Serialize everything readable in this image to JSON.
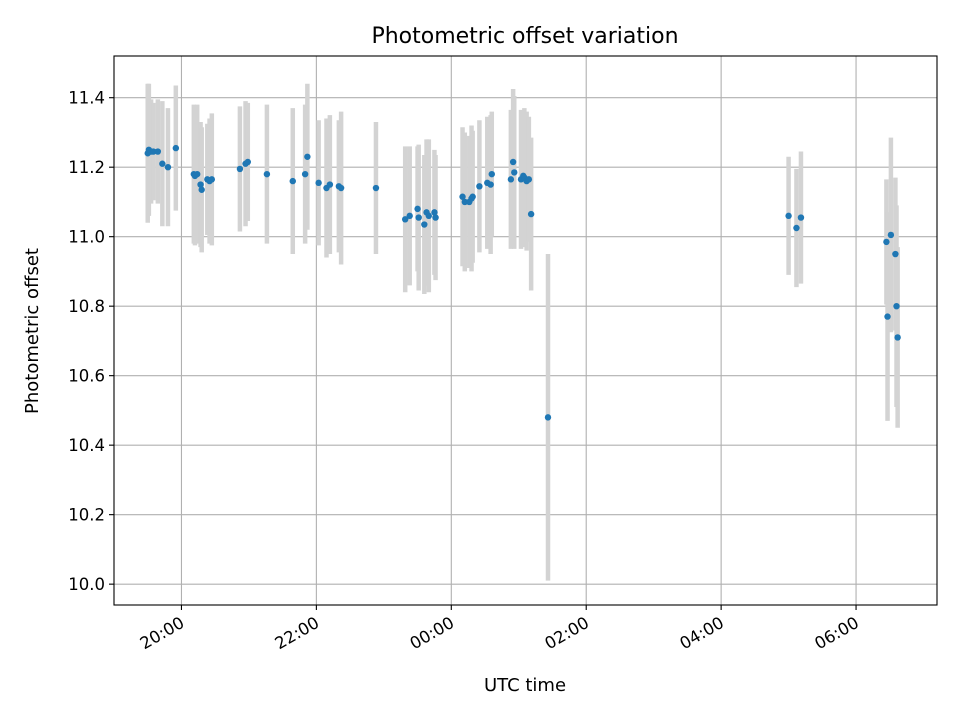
{
  "chart_data": {
    "type": "scatter",
    "title": "Photometric offset variation",
    "xlabel": "UTC time",
    "ylabel": "Photometric offset",
    "x_ticks": [
      "20:00",
      "22:00",
      "00:00",
      "02:00",
      "04:00",
      "06:00"
    ],
    "y_ticks": [
      "10.0",
      "10.2",
      "10.4",
      "10.6",
      "10.8",
      "11.0",
      "11.2",
      "11.4"
    ],
    "xlim": [
      "19:00",
      "07:12"
    ],
    "ylim": [
      9.94,
      11.52
    ],
    "grid": true,
    "colors": {
      "point": "#1f77b4",
      "errorbar": "#d3d3d3"
    },
    "series": [
      {
        "points": [
          {
            "t": "19:30",
            "y": 11.24,
            "err": 0.2
          },
          {
            "t": "19:31",
            "y": 11.25,
            "err": 0.19
          },
          {
            "t": "19:33",
            "y": 11.245,
            "err": 0.15
          },
          {
            "t": "19:35",
            "y": 11.245,
            "err": 0.14
          },
          {
            "t": "19:39",
            "y": 11.245,
            "err": 0.15
          },
          {
            "t": "19:43",
            "y": 11.21,
            "err": 0.18
          },
          {
            "t": "19:48",
            "y": 11.2,
            "err": 0.17
          },
          {
            "t": "19:55",
            "y": 11.255,
            "err": 0.18
          },
          {
            "t": "20:11",
            "y": 11.18,
            "err": 0.2
          },
          {
            "t": "20:12",
            "y": 11.175,
            "err": 0.2
          },
          {
            "t": "20:14",
            "y": 11.18,
            "err": 0.2
          },
          {
            "t": "20:17",
            "y": 11.15,
            "err": 0.18
          },
          {
            "t": "20:18",
            "y": 11.135,
            "err": 0.18
          },
          {
            "t": "20:23",
            "y": 11.165,
            "err": 0.16
          },
          {
            "t": "20:25",
            "y": 11.16,
            "err": 0.18
          },
          {
            "t": "20:27",
            "y": 11.165,
            "err": 0.19
          },
          {
            "t": "20:52",
            "y": 11.195,
            "err": 0.18
          },
          {
            "t": "20:57",
            "y": 11.21,
            "err": 0.18
          },
          {
            "t": "20:59",
            "y": 11.215,
            "err": 0.17
          },
          {
            "t": "21:16",
            "y": 11.18,
            "err": 0.2
          },
          {
            "t": "21:39",
            "y": 11.16,
            "err": 0.21
          },
          {
            "t": "21:50",
            "y": 11.18,
            "err": 0.2
          },
          {
            "t": "21:52",
            "y": 11.23,
            "err": 0.21
          },
          {
            "t": "22:02",
            "y": 11.155,
            "err": 0.18
          },
          {
            "t": "22:09",
            "y": 11.14,
            "err": 0.2
          },
          {
            "t": "22:12",
            "y": 11.15,
            "err": 0.2
          },
          {
            "t": "22:20",
            "y": 11.145,
            "err": 0.19
          },
          {
            "t": "22:22",
            "y": 11.14,
            "err": 0.22
          },
          {
            "t": "22:53",
            "y": 11.14,
            "err": 0.19
          },
          {
            "t": "23:19",
            "y": 11.05,
            "err": 0.21
          },
          {
            "t": "23:23",
            "y": 11.06,
            "err": 0.2
          },
          {
            "t": "23:30",
            "y": 11.08,
            "err": 0.18
          },
          {
            "t": "23:31",
            "y": 11.055,
            "err": 0.21
          },
          {
            "t": "23:36",
            "y": 11.035,
            "err": 0.2
          },
          {
            "t": "23:38",
            "y": 11.07,
            "err": 0.21
          },
          {
            "t": "23:40",
            "y": 11.06,
            "err": 0.22
          },
          {
            "t": "23:45",
            "y": 11.07,
            "err": 0.18
          },
          {
            "t": "23:46",
            "y": 11.055,
            "err": 0.18
          },
          {
            "t": "00:10",
            "y": 11.115,
            "err": 0.2
          },
          {
            "t": "00:12",
            "y": 11.1,
            "err": 0.2
          },
          {
            "t": "00:16",
            "y": 11.1,
            "err": 0.19
          },
          {
            "t": "00:18",
            "y": 11.11,
            "err": 0.21
          },
          {
            "t": "00:19",
            "y": 11.115,
            "err": 0.19
          },
          {
            "t": "00:25",
            "y": 11.145,
            "err": 0.19
          },
          {
            "t": "00:32",
            "y": 11.155,
            "err": 0.19
          },
          {
            "t": "00:35",
            "y": 11.15,
            "err": 0.2
          },
          {
            "t": "00:36",
            "y": 11.18,
            "err": 0.18
          },
          {
            "t": "00:53",
            "y": 11.165,
            "err": 0.2
          },
          {
            "t": "00:55",
            "y": 11.215,
            "err": 0.21
          },
          {
            "t": "00:56",
            "y": 11.185,
            "err": 0.22
          },
          {
            "t": "01:02",
            "y": 11.165,
            "err": 0.2
          },
          {
            "t": "01:04",
            "y": 11.175,
            "err": 0.18
          },
          {
            "t": "01:05",
            "y": 11.17,
            "err": 0.2
          },
          {
            "t": "01:07",
            "y": 11.16,
            "err": 0.2
          },
          {
            "t": "01:09",
            "y": 11.165,
            "err": 0.18
          },
          {
            "t": "01:11",
            "y": 11.065,
            "err": 0.22
          },
          {
            "t": "01:26",
            "y": 10.48,
            "err": 0.47
          },
          {
            "t": "05:00",
            "y": 11.06,
            "err": 0.17
          },
          {
            "t": "05:07",
            "y": 11.025,
            "err": 0.17
          },
          {
            "t": "05:11",
            "y": 11.055,
            "err": 0.19
          },
          {
            "t": "06:27",
            "y": 10.985,
            "err": 0.18
          },
          {
            "t": "06:28",
            "y": 10.77,
            "err": 0.3
          },
          {
            "t": "06:31",
            "y": 11.005,
            "err": 0.28
          },
          {
            "t": "06:35",
            "y": 10.95,
            "err": 0.22
          },
          {
            "t": "06:36",
            "y": 10.8,
            "err": 0.29
          },
          {
            "t": "06:37",
            "y": 10.71,
            "err": 0.26
          }
        ]
      }
    ]
  }
}
